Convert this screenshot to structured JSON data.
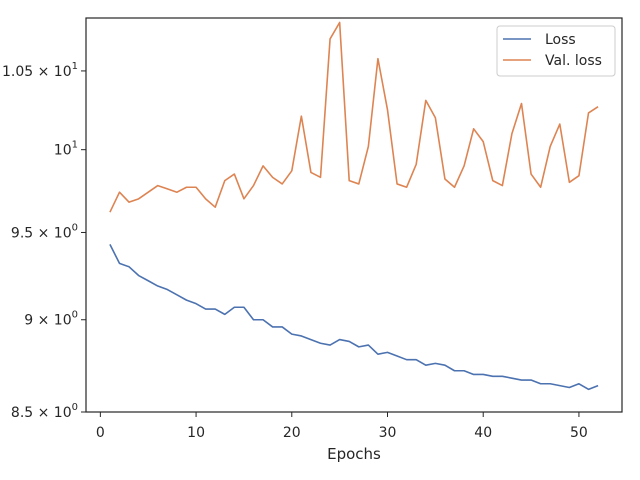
{
  "chart_data": {
    "type": "line",
    "title": "",
    "xlabel": "Epochs",
    "ylabel": "",
    "yscale": "log",
    "xlim": [
      -1.5,
      54.5
    ],
    "ylim": [
      8.5,
      10.85
    ],
    "grid": false,
    "legend_position": "top-right",
    "x_ticks": [
      {
        "value": 0,
        "label": "0"
      },
      {
        "value": 10,
        "label": "10"
      },
      {
        "value": 20,
        "label": "20"
      },
      {
        "value": 30,
        "label": "30"
      },
      {
        "value": 40,
        "label": "40"
      },
      {
        "value": 50,
        "label": "50"
      }
    ],
    "y_ticks": [
      {
        "value": 8.5,
        "mantissa": "8.5",
        "base": "10",
        "exp": "0"
      },
      {
        "value": 9.0,
        "mantissa": "9",
        "base": "10",
        "exp": "0"
      },
      {
        "value": 9.5,
        "mantissa": "9.5",
        "base": "10",
        "exp": "0"
      },
      {
        "value": 10.0,
        "mantissa": "",
        "base": "10",
        "exp": "1"
      },
      {
        "value": 10.5,
        "mantissa": "1.05",
        "base": "10",
        "exp": "1"
      }
    ],
    "x": [
      1,
      2,
      3,
      4,
      5,
      6,
      7,
      8,
      9,
      10,
      11,
      12,
      13,
      14,
      15,
      16,
      17,
      18,
      19,
      20,
      21,
      22,
      23,
      24,
      25,
      26,
      27,
      28,
      29,
      30,
      31,
      32,
      33,
      34,
      35,
      36,
      37,
      38,
      39,
      40,
      41,
      42,
      43,
      44,
      45,
      46,
      47,
      48,
      49,
      50,
      51,
      52
    ],
    "series": [
      {
        "name": "Loss",
        "color": "#4c72b0",
        "values": [
          9.43,
          9.32,
          9.3,
          9.25,
          9.22,
          9.19,
          9.17,
          9.14,
          9.11,
          9.09,
          9.06,
          9.06,
          9.03,
          9.07,
          9.07,
          9.0,
          9.0,
          8.96,
          8.96,
          8.92,
          8.91,
          8.89,
          8.87,
          8.86,
          8.89,
          8.88,
          8.85,
          8.86,
          8.81,
          8.82,
          8.8,
          8.78,
          8.78,
          8.75,
          8.76,
          8.75,
          8.72,
          8.72,
          8.7,
          8.7,
          8.69,
          8.69,
          8.68,
          8.67,
          8.67,
          8.65,
          8.65,
          8.64,
          8.63,
          8.65,
          8.62,
          8.64
        ]
      },
      {
        "name": "Val. loss",
        "color": "#dd8452",
        "values": [
          9.62,
          9.74,
          9.68,
          9.7,
          9.74,
          9.78,
          9.76,
          9.74,
          9.77,
          9.77,
          9.7,
          9.65,
          9.81,
          9.85,
          9.7,
          9.78,
          9.9,
          9.83,
          9.79,
          9.87,
          10.21,
          9.86,
          9.83,
          10.71,
          10.82,
          9.81,
          9.79,
          10.02,
          10.58,
          10.25,
          9.79,
          9.77,
          9.91,
          10.31,
          10.2,
          9.82,
          9.77,
          9.9,
          10.13,
          10.05,
          9.81,
          9.78,
          10.1,
          10.29,
          9.85,
          9.77,
          10.02,
          10.16,
          9.8,
          9.84,
          10.23,
          10.27
        ]
      }
    ]
  }
}
